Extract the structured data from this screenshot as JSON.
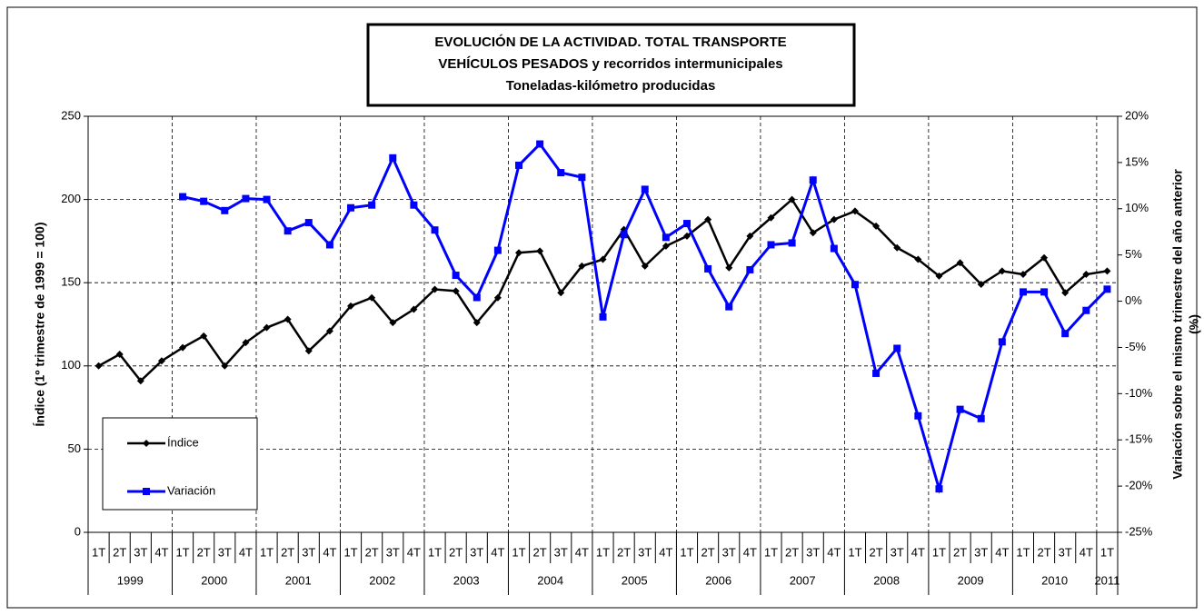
{
  "chart_data": {
    "type": "line",
    "title": [
      "EVOLUCIÓN DE LA ACTIVIDAD. TOTAL TRANSPORTE",
      "VEHÍCULOS PESADOS y recorridos intermunicipales",
      "Toneladas-kilómetro producidas"
    ],
    "y_label": "Índice (1º trimestre de 1999 = 100)",
    "y2_label": [
      "Variación sobre el mismo trimestre del año anterior",
      "(%)"
    ],
    "categories": [
      "1T",
      "2T",
      "3T",
      "4T",
      "1T",
      "2T",
      "3T",
      "4T",
      "1T",
      "2T",
      "3T",
      "4T",
      "1T",
      "2T",
      "3T",
      "4T",
      "1T",
      "2T",
      "3T",
      "4T",
      "1T",
      "2T",
      "3T",
      "4T",
      "1T",
      "2T",
      "3T",
      "4T",
      "1T",
      "2T",
      "3T",
      "4T",
      "1T",
      "2T",
      "3T",
      "4T",
      "1T",
      "2T",
      "3T",
      "4T",
      "1T",
      "2T",
      "3T",
      "4T",
      "1T",
      "2T",
      "3T",
      "4T",
      "1T"
    ],
    "years": [
      "1999",
      "2000",
      "2001",
      "2002",
      "2003",
      "2004",
      "2005",
      "2006",
      "2007",
      "2008",
      "2009",
      "2010",
      "2011"
    ],
    "series": [
      {
        "name": "Índice",
        "color": "#000000",
        "marker": "diamond",
        "axis": "y",
        "values": [
          100,
          107,
          91,
          103,
          111,
          118,
          100,
          114,
          123,
          128,
          109,
          121,
          136,
          141,
          126,
          134,
          146,
          145,
          126,
          141,
          168,
          169,
          144,
          160,
          164,
          182,
          160,
          172,
          178,
          188,
          159,
          178,
          189,
          200,
          180,
          188,
          193,
          184,
          171,
          164,
          154,
          162,
          149,
          157,
          155,
          165,
          144,
          155,
          157
        ]
      },
      {
        "name": "Variación",
        "color": "#0000ff",
        "marker": "square",
        "axis": "y2",
        "values": [
          null,
          null,
          null,
          null,
          11.3,
          10.8,
          9.8,
          11.1,
          11.0,
          7.6,
          8.5,
          6.1,
          10.1,
          10.4,
          15.5,
          10.4,
          7.7,
          2.8,
          0.4,
          5.5,
          14.7,
          17.0,
          13.9,
          13.4,
          -1.7,
          7.2,
          12.1,
          6.9,
          8.4,
          3.5,
          -0.6,
          3.4,
          6.1,
          6.3,
          13.1,
          5.7,
          1.8,
          -7.8,
          -5.1,
          -12.4,
          -20.3,
          -11.7,
          -12.7,
          -4.4,
          1.0,
          1.0,
          -3.5,
          -1.0,
          1.3
        ]
      }
    ],
    "ylim": [
      0,
      250
    ],
    "yticks": [
      0,
      50,
      100,
      150,
      200,
      250
    ],
    "y2lim": [
      -25,
      20
    ],
    "y2ticks": [
      {
        "value": -25,
        "label": "-25%"
      },
      {
        "value": -20,
        "label": "-20%"
      },
      {
        "value": -15,
        "label": "-15%"
      },
      {
        "value": -10,
        "label": "-10%"
      },
      {
        "value": -5,
        "label": "-5%"
      },
      {
        "value": 0,
        "label": "0%"
      },
      {
        "value": 5,
        "label": "5%"
      },
      {
        "value": 10,
        "label": "10%"
      },
      {
        "value": 15,
        "label": "15%"
      },
      {
        "value": 20,
        "label": "20%"
      }
    ],
    "grid": true,
    "legend": "lower left"
  }
}
